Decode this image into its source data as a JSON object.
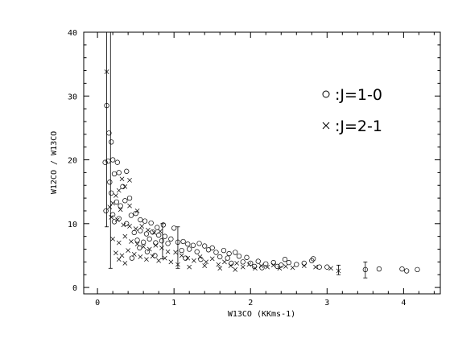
{
  "chart_data": {
    "type": "scatter",
    "title": "",
    "xlabel": "W13CO (KKms-1)",
    "ylabel": "W12CO / W13CO",
    "xlim": [
      -0.18,
      4.48
    ],
    "ylim": [
      -1.0,
      40
    ],
    "x_ticks": [
      0,
      1,
      2,
      3,
      4
    ],
    "y_ticks": [
      0,
      10,
      20,
      30,
      40
    ],
    "grid": false,
    "legend_position": "right",
    "series": [
      {
        "name": ":J=1-0",
        "marker": "circle",
        "points": [
          [
            0.12,
            28.5
          ],
          [
            0.15,
            24.2
          ],
          [
            0.18,
            22.8
          ],
          [
            0.1,
            19.6
          ],
          [
            0.14,
            19.8
          ],
          [
            0.2,
            20.0
          ],
          [
            0.26,
            19.6
          ],
          [
            0.16,
            16.5
          ],
          [
            0.22,
            17.8
          ],
          [
            0.28,
            18.0
          ],
          [
            0.38,
            18.2
          ],
          [
            0.33,
            15.8
          ],
          [
            0.18,
            14.8
          ],
          [
            0.25,
            13.4
          ],
          [
            0.42,
            14.0
          ],
          [
            0.3,
            12.8
          ],
          [
            0.36,
            13.6
          ],
          [
            0.11,
            12.0
          ],
          [
            0.2,
            11.4
          ],
          [
            0.22,
            10.3
          ],
          [
            0.28,
            10.8
          ],
          [
            0.38,
            10.0
          ],
          [
            0.44,
            11.3
          ],
          [
            0.5,
            11.6
          ],
          [
            0.56,
            10.6
          ],
          [
            0.62,
            10.4
          ],
          [
            0.7,
            10.1
          ],
          [
            0.78,
            9.4
          ],
          [
            0.86,
            9.8
          ],
          [
            1.0,
            9.3
          ],
          [
            0.48,
            8.6
          ],
          [
            0.56,
            8.9
          ],
          [
            0.64,
            8.4
          ],
          [
            0.72,
            8.7
          ],
          [
            0.8,
            8.2
          ],
          [
            0.88,
            8.0
          ],
          [
            0.96,
            7.6
          ],
          [
            0.52,
            7.4
          ],
          [
            0.6,
            7.1
          ],
          [
            0.68,
            7.6
          ],
          [
            0.76,
            7.0
          ],
          [
            0.84,
            7.3
          ],
          [
            0.92,
            6.9
          ],
          [
            1.05,
            7.1
          ],
          [
            1.12,
            7.2
          ],
          [
            1.18,
            6.8
          ],
          [
            1.25,
            6.6
          ],
          [
            1.33,
            6.9
          ],
          [
            1.4,
            6.5
          ],
          [
            1.5,
            6.2
          ],
          [
            1.1,
            5.8
          ],
          [
            1.2,
            6.0
          ],
          [
            1.3,
            5.6
          ],
          [
            1.45,
            5.9
          ],
          [
            1.55,
            5.5
          ],
          [
            1.65,
            5.8
          ],
          [
            1.72,
            5.3
          ],
          [
            1.8,
            5.5
          ],
          [
            1.6,
            4.8
          ],
          [
            1.7,
            4.6
          ],
          [
            1.85,
            4.9
          ],
          [
            1.95,
            4.7
          ],
          [
            1.15,
            4.6
          ],
          [
            1.35,
            4.4
          ],
          [
            0.65,
            5.6
          ],
          [
            0.75,
            5.0
          ],
          [
            0.55,
            6.2
          ],
          [
            0.45,
            4.6
          ],
          [
            1.9,
            4.0
          ],
          [
            2.0,
            3.8
          ],
          [
            2.1,
            4.1
          ],
          [
            2.2,
            3.7
          ],
          [
            2.3,
            3.9
          ],
          [
            2.4,
            3.5
          ],
          [
            2.5,
            3.9
          ],
          [
            2.6,
            3.6
          ],
          [
            2.7,
            3.8
          ],
          [
            2.8,
            4.2
          ],
          [
            2.82,
            4.5
          ],
          [
            2.9,
            3.2
          ],
          [
            3.0,
            3.2
          ],
          [
            2.05,
            3.3
          ],
          [
            2.15,
            3.1
          ],
          [
            2.35,
            3.3
          ],
          [
            2.45,
            4.4
          ],
          [
            1.75,
            3.8
          ],
          [
            3.5,
            2.8
          ],
          [
            3.68,
            2.9
          ],
          [
            3.98,
            2.9
          ],
          [
            4.04,
            2.6
          ],
          [
            4.18,
            2.8
          ]
        ]
      },
      {
        "name": ":J=2-1",
        "marker": "x",
        "points": [
          [
            0.12,
            33.8
          ],
          [
            0.32,
            17.0
          ],
          [
            0.42,
            16.8
          ],
          [
            0.36,
            15.8
          ],
          [
            0.28,
            15.2
          ],
          [
            0.24,
            14.4
          ],
          [
            0.2,
            13.2
          ],
          [
            0.3,
            12.2
          ],
          [
            0.42,
            12.8
          ],
          [
            0.52,
            12.0
          ],
          [
            0.16,
            12.6
          ],
          [
            0.18,
            11.0
          ],
          [
            0.26,
            10.6
          ],
          [
            0.34,
            9.8
          ],
          [
            0.42,
            9.6
          ],
          [
            0.5,
            9.2
          ],
          [
            0.58,
            9.6
          ],
          [
            0.66,
            9.0
          ],
          [
            0.74,
            8.6
          ],
          [
            0.82,
            8.8
          ],
          [
            0.2,
            7.6
          ],
          [
            0.28,
            7.0
          ],
          [
            0.36,
            8.0
          ],
          [
            0.44,
            7.2
          ],
          [
            0.52,
            6.8
          ],
          [
            0.6,
            6.4
          ],
          [
            0.68,
            6.0
          ],
          [
            0.76,
            6.6
          ],
          [
            0.84,
            6.2
          ],
          [
            0.92,
            5.6
          ],
          [
            0.24,
            5.4
          ],
          [
            0.32,
            5.0
          ],
          [
            0.4,
            5.8
          ],
          [
            0.48,
            5.2
          ],
          [
            0.56,
            4.8
          ],
          [
            0.64,
            4.4
          ],
          [
            0.72,
            4.9
          ],
          [
            0.8,
            4.2
          ],
          [
            0.88,
            4.6
          ],
          [
            0.96,
            4.0
          ],
          [
            0.28,
            4.4
          ],
          [
            0.36,
            3.8
          ],
          [
            1.02,
            5.5
          ],
          [
            1.1,
            5.0
          ],
          [
            1.18,
            4.6
          ],
          [
            1.26,
            4.2
          ],
          [
            1.34,
            4.8
          ],
          [
            1.42,
            4.0
          ],
          [
            1.5,
            4.5
          ],
          [
            1.58,
            3.6
          ],
          [
            1.66,
            4.0
          ],
          [
            1.74,
            3.4
          ],
          [
            1.82,
            3.8
          ],
          [
            1.9,
            3.2
          ],
          [
            1.98,
            3.6
          ],
          [
            2.06,
            3.0
          ],
          [
            2.14,
            3.4
          ],
          [
            2.22,
            3.2
          ],
          [
            2.3,
            3.5
          ],
          [
            2.38,
            3.0
          ],
          [
            2.46,
            3.3
          ],
          [
            2.55,
            3.1
          ],
          [
            2.7,
            3.4
          ],
          [
            2.85,
            3.2
          ],
          [
            3.05,
            3.0
          ],
          [
            1.05,
            3.6
          ],
          [
            1.2,
            3.2
          ],
          [
            1.4,
            3.4
          ],
          [
            1.6,
            3.0
          ],
          [
            1.8,
            2.8
          ],
          [
            3.15,
            2.6
          ]
        ]
      }
    ],
    "error_bars": [
      {
        "x": 0.12,
        "y": 27.0,
        "low": 9.5,
        "high": 40.0
      },
      {
        "x": 0.17,
        "y": 13.0,
        "low": 3.0,
        "high": 40.0
      },
      {
        "x": 0.85,
        "y": 7.5,
        "low": 4.5,
        "high": 10.0
      },
      {
        "x": 1.05,
        "y": 6.5,
        "low": 3.0,
        "high": 9.5
      },
      {
        "x": 3.15,
        "y": 2.7,
        "low": 2.0,
        "high": 3.5
      },
      {
        "x": 3.5,
        "y": 2.8,
        "low": 1.5,
        "high": 4.0
      }
    ]
  }
}
